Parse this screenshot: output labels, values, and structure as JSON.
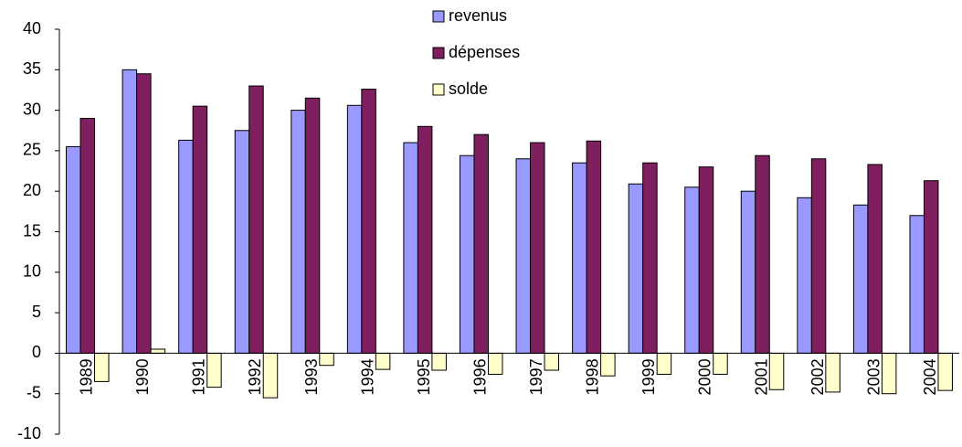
{
  "chart_data": {
    "type": "bar",
    "categories": [
      "1989",
      "1990",
      "1991",
      "1992",
      "1993",
      "1994",
      "1995",
      "1996",
      "1997",
      "1998",
      "1999",
      "2000",
      "2001",
      "2002",
      "2003",
      "2004"
    ],
    "series": [
      {
        "name": "revenus",
        "color": "#9999ff",
        "values": [
          25.5,
          35,
          26.3,
          27.5,
          30,
          30.6,
          26,
          24.4,
          24,
          23.5,
          20.9,
          20.5,
          20,
          19.2,
          18.3,
          17
        ]
      },
      {
        "name": "dépenses",
        "color": "#7f1f5f",
        "values": [
          29,
          34.5,
          30.5,
          33,
          31.5,
          32.6,
          28,
          27,
          26,
          26.2,
          23.5,
          23,
          24.4,
          24,
          23.3,
          21.3
        ]
      },
      {
        "name": "solde",
        "color": "#ffffcc",
        "values": [
          -3.5,
          0.5,
          -4.2,
          -5.5,
          -1.5,
          -2,
          -2.1,
          -2.6,
          -2.1,
          -2.8,
          -2.6,
          -2.6,
          -4.5,
          -4.8,
          -5,
          -4.6
        ]
      }
    ],
    "ylim": [
      -10,
      40
    ],
    "yticks": [
      -10,
      -5,
      0,
      5,
      10,
      15,
      20,
      25,
      30,
      35,
      40
    ],
    "legend": "top"
  }
}
